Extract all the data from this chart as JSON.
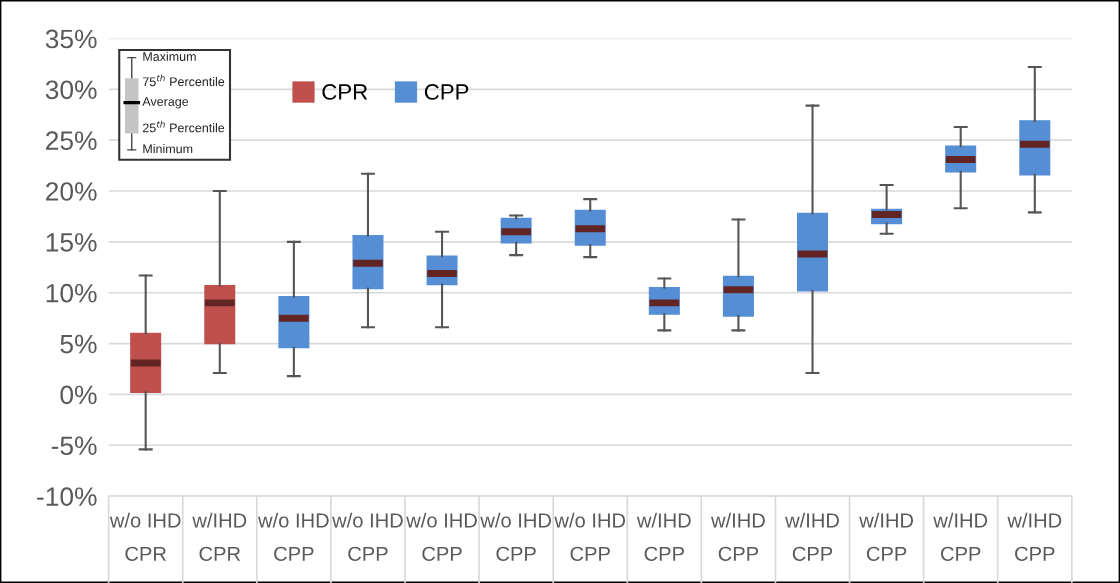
{
  "chart_data": {
    "type": "box",
    "categories": [
      "w/o IHD\nCPR",
      "w/IHD\nCPR",
      "w/o IHD\nCPP",
      "w/o IHD\nCPP",
      "w/o IHD\nCPP",
      "w/o IHD\nCPP",
      "w/o IHD\nCPP",
      "w/IHD\nCPP",
      "w/IHD\nCPP",
      "w/IHD\nCPP",
      "w/IHD\nCPP",
      "w/IHD\nCPP",
      "w/IHD\nCPP"
    ],
    "series": [
      {
        "name": "CPR",
        "color": "#c0504d",
        "boxes": [
          {
            "low": -5.4,
            "q1": 0.2,
            "median": 3.1,
            "q3": 6.0,
            "high": 11.7
          },
          {
            "low": 2.1,
            "q1": 5.0,
            "median": 9.0,
            "q3": 10.7,
            "high": 20.0
          },
          null,
          null,
          null,
          null,
          null,
          null,
          null,
          null,
          null,
          null,
          null
        ]
      },
      {
        "name": "CPP",
        "color": "#558ed5",
        "boxes": [
          null,
          null,
          {
            "low": 1.8,
            "q1": 4.6,
            "median": 7.5,
            "q3": 9.6,
            "high": 15.0
          },
          {
            "low": 6.6,
            "q1": 10.4,
            "median": 12.9,
            "q3": 15.6,
            "high": 21.7
          },
          {
            "low": 6.6,
            "q1": 10.8,
            "median": 11.9,
            "q3": 13.6,
            "high": 16.0
          },
          {
            "low": 13.7,
            "q1": 14.9,
            "median": 16.0,
            "q3": 17.3,
            "high": 17.6
          },
          {
            "low": 13.5,
            "q1": 14.7,
            "median": 16.3,
            "q3": 18.1,
            "high": 19.2
          },
          {
            "low": 6.3,
            "q1": 7.9,
            "median": 9.0,
            "q3": 10.5,
            "high": 11.4
          },
          {
            "low": 6.3,
            "q1": 7.7,
            "median": 10.3,
            "q3": 11.6,
            "high": 17.2
          },
          {
            "low": 2.1,
            "q1": 10.2,
            "median": 13.8,
            "q3": 17.8,
            "high": 28.4
          },
          {
            "low": 15.8,
            "q1": 16.8,
            "median": 17.7,
            "q3": 18.2,
            "high": 20.6
          },
          {
            "low": 18.3,
            "q1": 21.9,
            "median": 23.1,
            "q3": 24.4,
            "high": 26.3
          },
          {
            "low": 17.9,
            "q1": 21.6,
            "median": 24.6,
            "q3": 26.9,
            "high": 32.2
          }
        ]
      }
    ],
    "ylim": [
      -10,
      35
    ],
    "yticks": [
      {
        "value": -10,
        "label": "-10%"
      },
      {
        "value": -5,
        "label": "-5%"
      },
      {
        "value": 0,
        "label": "0%"
      },
      {
        "value": 5,
        "label": "5%"
      },
      {
        "value": 10,
        "label": "10%"
      },
      {
        "value": 15,
        "label": "15%"
      },
      {
        "value": 20,
        "label": "20%"
      },
      {
        "value": 25,
        "label": "25%"
      },
      {
        "value": 30,
        "label": "30%"
      },
      {
        "value": 35,
        "label": "35%"
      }
    ],
    "grid": "y",
    "legend": "top left",
    "annotations": [
      "Maximum",
      "75$^{th}$ Percentile",
      "Average",
      "25$^{th}$ Percentile",
      "Minimum"
    ]
  }
}
